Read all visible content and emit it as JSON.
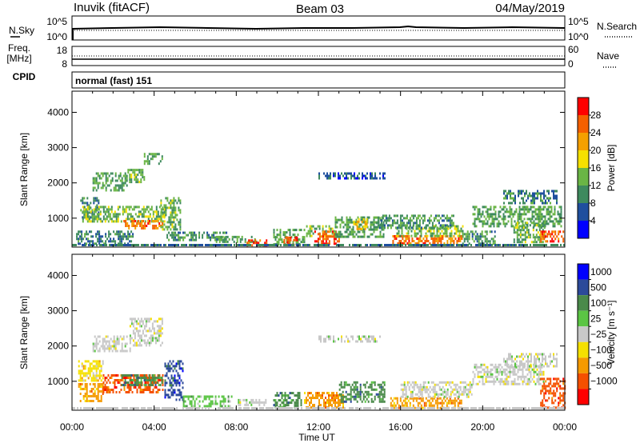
{
  "header": {
    "station": "Inuvik (fitACF)",
    "beam": "Beam 03",
    "date": "04/May/2019"
  },
  "strip_panels": {
    "nsky_label": "N.Sky",
    "nsearch_label": "N.Search",
    "left_ticks": [
      "10^5",
      "10^0"
    ],
    "right_ticks": [
      "10^5",
      "10^0"
    ],
    "freq_label_1": "Freq.",
    "freq_label_2": "[MHz]",
    "freq_ticks": [
      "18",
      "8"
    ],
    "nave_label": "Nave",
    "nave_ticks": [
      "60",
      "0"
    ],
    "cpid_label": "CPID",
    "cpid_text": "normal (fast) 151"
  },
  "colors": {
    "power_scale": [
      "#0000ff",
      "#1f4f9e",
      "#3e8a5e",
      "#6ab545",
      "#f5e000",
      "#f5a000",
      "#f56000",
      "#ff0000"
    ],
    "velocity_scale": [
      "#0000ff",
      "#2c4a9a",
      "#4a8a4a",
      "#5bc544",
      "#c8c8c8",
      "#f5e000",
      "#f59a00",
      "#f55000",
      "#ff0000"
    ]
  },
  "chart_data": [
    {
      "type": "heatmap",
      "name": "power",
      "ylabel": "Slant Range [km]",
      "xlabel": "Time UT",
      "x_ticks": [
        "00:00",
        "04:00",
        "08:00",
        "12:00",
        "16:00",
        "20:00",
        "00:00"
      ],
      "y_ticks": [
        1000,
        2000,
        3000,
        4000
      ],
      "xlim_hours": [
        0,
        24
      ],
      "ylim_km": [
        180,
        4600
      ],
      "colorbar": {
        "label": "Power [dB]",
        "ticks": [
          "4",
          "8",
          "12",
          "16",
          "20",
          "24",
          "28"
        ],
        "range": [
          0,
          30
        ]
      },
      "regions": [
        {
          "t": [
            0.4,
            1.3
          ],
          "r": [
            1000,
            1600
          ],
          "v": 9
        },
        {
          "t": [
            1.0,
            2.7
          ],
          "r": [
            1800,
            2300
          ],
          "v": 12
        },
        {
          "t": [
            2.7,
            3.5
          ],
          "r": [
            2000,
            2400
          ],
          "v": 13
        },
        {
          "t": [
            3.5,
            4.4
          ],
          "r": [
            2550,
            2850
          ],
          "v": 12
        },
        {
          "t": [
            0.5,
            4.5
          ],
          "r": [
            900,
            1350
          ],
          "v": 14
        },
        {
          "t": [
            2.5,
            4.4
          ],
          "r": [
            720,
            950
          ],
          "v": 25
        },
        {
          "t": [
            4.3,
            5.3
          ],
          "r": [
            700,
            1600
          ],
          "v": 13
        },
        {
          "t": [
            0.2,
            3.0
          ],
          "r": [
            260,
            650
          ],
          "v": 9
        },
        {
          "t": [
            4.6,
            7.5
          ],
          "r": [
            350,
            620
          ],
          "v": 10
        },
        {
          "t": [
            7.0,
            9.0
          ],
          "r": [
            300,
            500
          ],
          "v": 12
        },
        {
          "t": [
            8.5,
            9.5
          ],
          "r": [
            230,
            400
          ],
          "v": 27
        },
        {
          "t": [
            9.8,
            11.3
          ],
          "r": [
            280,
            700
          ],
          "v": 12
        },
        {
          "t": [
            10.3,
            11.0
          ],
          "r": [
            260,
            480
          ],
          "v": 26
        },
        {
          "t": [
            11.4,
            12.8
          ],
          "r": [
            500,
            800
          ],
          "v": 14
        },
        {
          "t": [
            11.8,
            13.0
          ],
          "r": [
            260,
            650
          ],
          "v": 27
        },
        {
          "t": [
            12.8,
            15.2
          ],
          "r": [
            450,
            1050
          ],
          "v": 12
        },
        {
          "t": [
            13.7,
            14.4
          ],
          "r": [
            700,
            1000
          ],
          "v": 20
        },
        {
          "t": [
            12.0,
            15.2
          ],
          "r": [
            2100,
            2300
          ],
          "v": 6
        },
        {
          "t": [
            15.6,
            19.0
          ],
          "r": [
            280,
            520
          ],
          "v": 25
        },
        {
          "t": [
            15.8,
            19.0
          ],
          "r": [
            520,
            800
          ],
          "v": 14
        },
        {
          "t": [
            14.8,
            18.6
          ],
          "r": [
            700,
            1100
          ],
          "v": 11
        },
        {
          "t": [
            19.0,
            20.6
          ],
          "r": [
            300,
            650
          ],
          "v": 11
        },
        {
          "t": [
            19.5,
            23.8
          ],
          "r": [
            750,
            1350
          ],
          "v": 12
        },
        {
          "t": [
            21.0,
            23.6
          ],
          "r": [
            1450,
            1800
          ],
          "v": 9
        },
        {
          "t": [
            21.5,
            23.0
          ],
          "r": [
            350,
            900
          ],
          "v": 13
        },
        {
          "t": [
            22.8,
            23.9
          ],
          "r": [
            350,
            650
          ],
          "v": 26
        }
      ]
    },
    {
      "type": "heatmap",
      "name": "velocity",
      "ylabel": "Slant Range [km]",
      "xlabel": "Time UT",
      "x_ticks": [
        "00:00",
        "04:00",
        "08:00",
        "12:00",
        "16:00",
        "20:00",
        "00:00"
      ],
      "y_ticks": [
        1000,
        2000,
        3000,
        4000
      ],
      "xlim_hours": [
        0,
        24
      ],
      "ylim_km": [
        180,
        4600
      ],
      "colorbar": {
        "label": "Velocity [m s⁻¹]",
        "ticks": [
          "1000",
          "500",
          "100",
          "25",
          "−25",
          "−100",
          "−500",
          "−1000"
        ]
      },
      "regions": [
        {
          "t": [
            0.3,
            1.5
          ],
          "r": [
            1000,
            1600
          ],
          "v": 5
        },
        {
          "t": [
            1.0,
            2.8
          ],
          "r": [
            1850,
            2300
          ],
          "v": 4
        },
        {
          "t": [
            2.8,
            4.4
          ],
          "r": [
            2000,
            2800
          ],
          "v": 4
        },
        {
          "t": [
            0.3,
            1.5
          ],
          "r": [
            450,
            950
          ],
          "v": 6
        },
        {
          "t": [
            1.5,
            4.4
          ],
          "r": [
            700,
            1200
          ],
          "v": 7
        },
        {
          "t": [
            2.4,
            4.4
          ],
          "r": [
            900,
            1200
          ],
          "v": 2
        },
        {
          "t": [
            4.5,
            5.4
          ],
          "r": [
            500,
            1600
          ],
          "v": 1
        },
        {
          "t": [
            5.4,
            7.8
          ],
          "r": [
            300,
            600
          ],
          "v": 3
        },
        {
          "t": [
            8.0,
            9.5
          ],
          "r": [
            300,
            500
          ],
          "v": 4
        },
        {
          "t": [
            9.8,
            11.2
          ],
          "r": [
            260,
            700
          ],
          "v": 2
        },
        {
          "t": [
            11.3,
            13.2
          ],
          "r": [
            260,
            700
          ],
          "v": 6
        },
        {
          "t": [
            13.0,
            15.2
          ],
          "r": [
            400,
            1000
          ],
          "v": 2
        },
        {
          "t": [
            12.0,
            15.0
          ],
          "r": [
            2100,
            2300
          ],
          "v": 4
        },
        {
          "t": [
            15.5,
            19.0
          ],
          "r": [
            260,
            550
          ],
          "v": 6
        },
        {
          "t": [
            16.0,
            19.5
          ],
          "r": [
            550,
            1000
          ],
          "v": 4
        },
        {
          "t": [
            19.5,
            23.0
          ],
          "r": [
            900,
            1500
          ],
          "v": 4
        },
        {
          "t": [
            21.0,
            23.6
          ],
          "r": [
            1450,
            1800
          ],
          "v": 4
        },
        {
          "t": [
            22.8,
            24.0
          ],
          "r": [
            260,
            1100
          ],
          "v": 7
        }
      ]
    }
  ]
}
